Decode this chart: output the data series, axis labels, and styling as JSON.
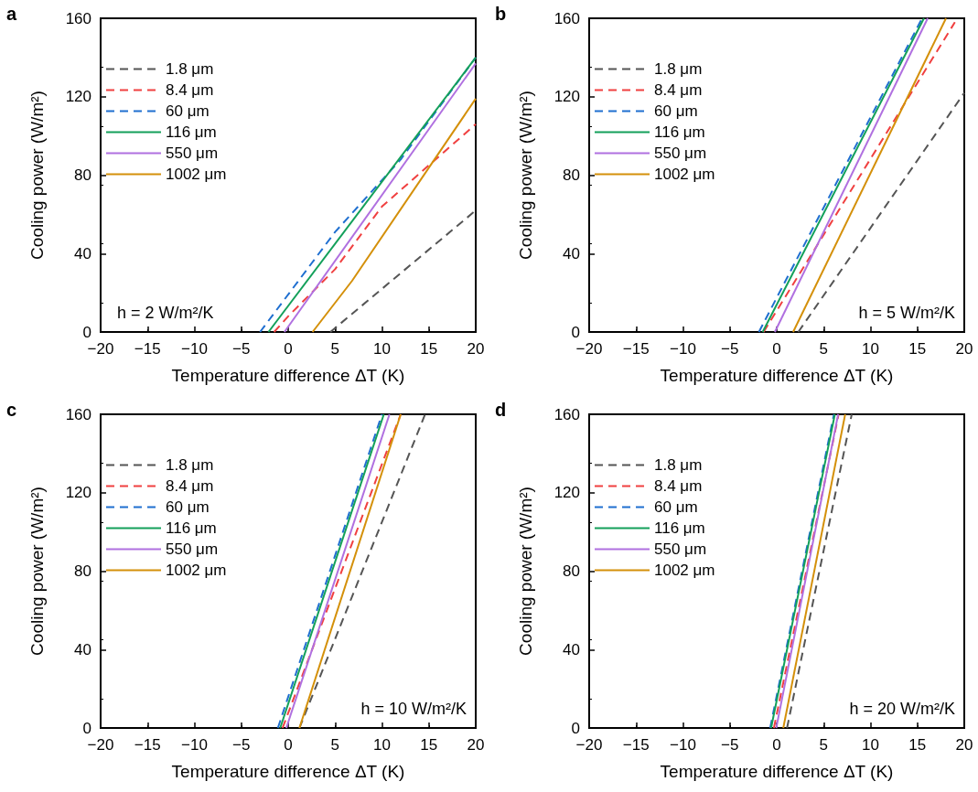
{
  "chart_data": [
    {
      "type": "line",
      "title": "a",
      "xlabel": "Temperature difference ΔT (K)",
      "ylabel": "Cooling power (W/m²)",
      "xlim": [
        -20,
        20
      ],
      "xticks": [
        -20,
        -15,
        -10,
        -5,
        0,
        5,
        10,
        15,
        20
      ],
      "ylim": [
        0,
        160
      ],
      "yticks": [
        0,
        40,
        80,
        120,
        160
      ],
      "legend": "top left",
      "marker": "none",
      "annotations": [
        "h = 2 W/m²/K"
      ],
      "series": [
        {
          "name": "1.8 μm",
          "color": "#555555",
          "line_style": "dashed",
          "x": [
            4.5,
            20
          ],
          "values": [
            0,
            62
          ]
        },
        {
          "name": "8.4 μm",
          "color": "#f04040",
          "line_style": "dashed",
          "x": [
            -1.5,
            0,
            5,
            10,
            15,
            20
          ],
          "values": [
            0,
            8,
            32,
            64,
            85,
            106
          ]
        },
        {
          "name": "60 μm",
          "color": "#1f6fd0",
          "line_style": "dashed",
          "x": [
            -3,
            5,
            12,
            20
          ],
          "values": [
            0,
            51,
            88,
            140
          ]
        },
        {
          "name": "116 μm",
          "color": "#13a05a",
          "line_style": "solid",
          "x": [
            -2.1,
            20
          ],
          "values": [
            0,
            140
          ]
        },
        {
          "name": "550 μm",
          "color": "#b070e0",
          "line_style": "solid",
          "x": [
            -0.4,
            20
          ],
          "values": [
            0,
            137
          ]
        },
        {
          "name": "1002 μm",
          "color": "#d4900a",
          "line_style": "solid",
          "x": [
            2.6,
            6.8,
            20
          ],
          "values": [
            0,
            26,
            119
          ]
        }
      ]
    },
    {
      "type": "line",
      "title": "b",
      "xlabel": "Temperature difference ΔT (K)",
      "ylabel": "Cooling power (W/m²)",
      "xlim": [
        -20,
        20
      ],
      "xticks": [
        -20,
        -15,
        -10,
        -5,
        0,
        5,
        10,
        15,
        20
      ],
      "ylim": [
        0,
        160
      ],
      "yticks": [
        0,
        40,
        80,
        120,
        160
      ],
      "legend": "top left",
      "marker": "none",
      "annotations": [
        "h = 5 W/m²/K"
      ],
      "series": [
        {
          "name": "1.8 μm",
          "color": "#555555",
          "line_style": "dashed",
          "x": [
            2.3,
            20
          ],
          "values": [
            0,
            122
          ]
        },
        {
          "name": "8.4 μm",
          "color": "#f04040",
          "line_style": "dashed",
          "x": [
            -1.4,
            19
          ],
          "values": [
            0,
            158
          ]
        },
        {
          "name": "60 μm",
          "color": "#1f6fd0",
          "line_style": "dashed",
          "x": [
            -1.9,
            15.5
          ],
          "values": [
            0,
            160
          ]
        },
        {
          "name": "116 μm",
          "color": "#13a05a",
          "line_style": "solid",
          "x": [
            -1.5,
            15.7
          ],
          "values": [
            0,
            160
          ]
        },
        {
          "name": "550 μm",
          "color": "#b070e0",
          "line_style": "solid",
          "x": [
            -0.2,
            16.1
          ],
          "values": [
            0,
            160
          ]
        },
        {
          "name": "1002 μm",
          "color": "#d4900a",
          "line_style": "solid",
          "x": [
            1.75,
            18.05
          ],
          "values": [
            0,
            160
          ]
        }
      ]
    },
    {
      "type": "line",
      "title": "c",
      "xlabel": "Temperature difference ΔT (K)",
      "ylabel": "Cooling power (W/m²)",
      "xlim": [
        -20,
        20
      ],
      "xticks": [
        -20,
        -15,
        -10,
        -5,
        0,
        5,
        10,
        15,
        20
      ],
      "ylim": [
        0,
        160
      ],
      "yticks": [
        0,
        40,
        80,
        120,
        160
      ],
      "legend": "top left",
      "marker": "none",
      "annotations": [
        "h = 10 W/m²/K"
      ],
      "series": [
        {
          "name": "1.8 μm",
          "color": "#555555",
          "line_style": "dashed",
          "x": [
            1.2,
            14.6
          ],
          "values": [
            0,
            160
          ]
        },
        {
          "name": "8.4 μm",
          "color": "#f04040",
          "line_style": "dashed",
          "x": [
            -0.6,
            12
          ],
          "values": [
            0,
            160
          ]
        },
        {
          "name": "60 μm",
          "color": "#1f6fd0",
          "line_style": "dashed",
          "x": [
            -1.1,
            10
          ],
          "values": [
            0,
            160
          ]
        },
        {
          "name": "116 μm",
          "color": "#13a05a",
          "line_style": "solid",
          "x": [
            -0.85,
            10.2
          ],
          "values": [
            0,
            160
          ]
        },
        {
          "name": "550 μm",
          "color": "#b070e0",
          "line_style": "solid",
          "x": [
            -0.2,
            10.8
          ],
          "values": [
            0,
            160
          ]
        },
        {
          "name": "1002 μm",
          "color": "#d4900a",
          "line_style": "solid",
          "x": [
            1.2,
            12
          ],
          "values": [
            0,
            160
          ]
        }
      ]
    },
    {
      "type": "line",
      "title": "d",
      "xlabel": "Temperature difference ΔT (K)",
      "ylabel": "Cooling power (W/m²)",
      "xlim": [
        -20,
        20
      ],
      "xticks": [
        -20,
        -15,
        -10,
        -5,
        0,
        5,
        10,
        15,
        20
      ],
      "ylim": [
        0,
        160
      ],
      "yticks": [
        0,
        40,
        80,
        120,
        160
      ],
      "legend": "top left",
      "marker": "none",
      "annotations": [
        "h = 20 W/m²/K"
      ],
      "series": [
        {
          "name": "1.8 μm",
          "color": "#555555",
          "line_style": "dashed",
          "x": [
            1.1,
            8
          ],
          "values": [
            0,
            160
          ]
        },
        {
          "name": "8.4 μm",
          "color": "#f04040",
          "line_style": "dashed",
          "x": [
            -0.3,
            6.6
          ],
          "values": [
            0,
            160
          ]
        },
        {
          "name": "60 μm",
          "color": "#1f6fd0",
          "line_style": "dashed",
          "x": [
            -0.7,
            6.1
          ],
          "values": [
            0,
            160
          ]
        },
        {
          "name": "116 μm",
          "color": "#13a05a",
          "line_style": "solid",
          "x": [
            -0.6,
            6.2
          ],
          "values": [
            0,
            160
          ]
        },
        {
          "name": "550 μm",
          "color": "#b070e0",
          "line_style": "solid",
          "x": [
            -0.05,
            6.55
          ],
          "values": [
            0,
            160
          ]
        },
        {
          "name": "1002 μm",
          "color": "#d4900a",
          "line_style": "solid",
          "x": [
            0.7,
            7.3
          ],
          "values": [
            0,
            160
          ]
        }
      ]
    }
  ]
}
